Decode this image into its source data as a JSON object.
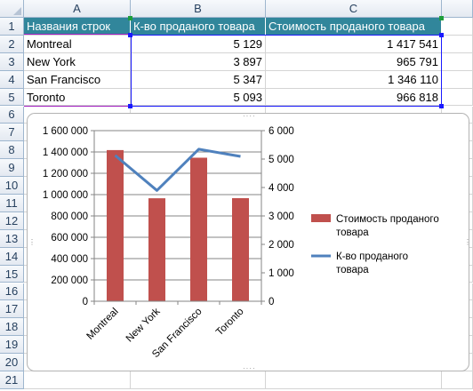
{
  "columns": [
    "A",
    "B",
    "C"
  ],
  "rows": [
    "1",
    "2",
    "3",
    "4",
    "5",
    "6",
    "7",
    "8",
    "9",
    "10",
    "11",
    "12",
    "13",
    "14",
    "15",
    "16",
    "17",
    "18",
    "19",
    "20",
    "21"
  ],
  "table": {
    "headers": [
      "Названия строк",
      "К-во проданого товара",
      "Стоимость проданого товара"
    ],
    "rows": [
      [
        "Montreal",
        "5 129",
        "1 417 541"
      ],
      [
        "New York",
        "3 897",
        "965 791"
      ],
      [
        "San Francisco",
        "5 347",
        "1 346 110"
      ],
      [
        "Toronto",
        "5 093",
        "966 818"
      ]
    ]
  },
  "colors": {
    "header_fill": "#31869b",
    "bar": "#c0504d",
    "line": "#4f81bd"
  },
  "chart_data": {
    "type": "bar",
    "categories": [
      "Montreal",
      "New York",
      "San Francisco",
      "Toronto"
    ],
    "series": [
      {
        "name": "Стоимость проданого товара",
        "type": "bar",
        "axis": "left",
        "values": [
          1417541,
          965791,
          1346110,
          966818
        ]
      },
      {
        "name": "К-во проданого товара",
        "type": "line",
        "axis": "right",
        "values": [
          5129,
          3897,
          5347,
          5093
        ]
      }
    ],
    "ylim": [
      0,
      1600000
    ],
    "yticks": [
      "0",
      "200 000",
      "400 000",
      "600 000",
      "800 000",
      "1 000 000",
      "1 200 000",
      "1 400 000",
      "1 600 000"
    ],
    "y2lim": [
      0,
      6000
    ],
    "y2ticks": [
      "0",
      "1 000",
      "2 000",
      "3 000",
      "4 000",
      "5 000",
      "6 000"
    ],
    "grid": true,
    "legend": "right"
  }
}
